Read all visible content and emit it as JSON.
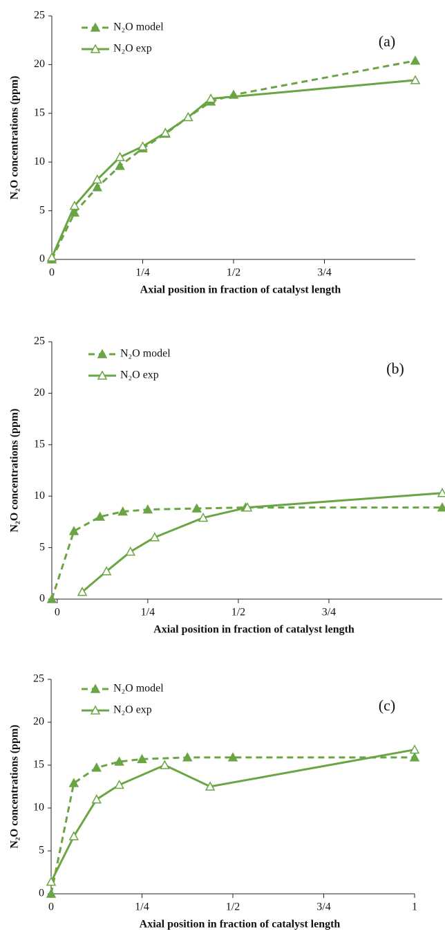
{
  "chart_data": [
    {
      "type": "line",
      "annotation": "(a)",
      "xlabel": "Axial position in fraction of catalyst length",
      "ylabel": "N₂O concentrations (ppm)",
      "xlim": [
        0,
        1
      ],
      "xticks": [
        0,
        {
          "value": 0.25,
          "label": "1/4"
        },
        {
          "value": 0.5,
          "label": "1/2"
        },
        {
          "value": 0.75,
          "label": "3/4"
        }
      ],
      "ylim": [
        0,
        25
      ],
      "yticks": [
        0,
        5,
        10,
        15,
        20,
        25
      ],
      "series": [
        {
          "name": "N₂O model",
          "color": "#6aa544",
          "line_style": "dashed",
          "marker": "filled-triangle",
          "x": [
            0,
            0.0625,
            0.125,
            0.1875,
            0.25,
            0.3125,
            0.375,
            0.4375,
            0.5,
            1
          ],
          "values": [
            0,
            4.8,
            7.4,
            9.6,
            11.4,
            12.9,
            14.6,
            16.2,
            16.9,
            20.4
          ]
        },
        {
          "name": "N₂O exp",
          "color": "#6aa544",
          "line_style": "solid",
          "marker": "open-triangle",
          "x": [
            0,
            0.0625,
            0.125,
            0.1875,
            0.25,
            0.3125,
            0.375,
            0.4375,
            1
          ],
          "values": [
            0.2,
            5.5,
            8.2,
            10.5,
            11.6,
            13.0,
            14.6,
            16.5,
            18.4
          ]
        }
      ]
    },
    {
      "type": "line",
      "annotation": "(b)",
      "xlabel": "Axial position in fraction of catalyst length",
      "ylabel": "N₂O concentrations (ppm)",
      "xlim": [
        -0.015,
        1.063
      ],
      "xticks": [
        0,
        {
          "value": 0.25,
          "label": "1/4"
        },
        {
          "value": 0.5,
          "label": "1/2"
        },
        {
          "value": 0.75,
          "label": "3/4"
        }
      ],
      "ylim": [
        0,
        25
      ],
      "yticks": [
        0,
        5,
        10,
        15,
        20,
        25
      ],
      "series": [
        {
          "name": "N₂O model",
          "color": "#6aa544",
          "line_style": "dashed",
          "marker": "filled-triangle",
          "x": [
            -0.015,
            0.046,
            0.118,
            0.181,
            0.25,
            0.385,
            0.52,
            1.063
          ],
          "values": [
            0,
            6.6,
            8.0,
            8.5,
            8.7,
            8.8,
            8.9,
            8.9
          ]
        },
        {
          "name": "N₂O exp",
          "color": "#6aa544",
          "line_style": "solid",
          "marker": "open-triangle",
          "x": [
            0.069,
            0.136,
            0.202,
            0.269,
            0.403,
            0.525,
            1.063
          ],
          "values": [
            0.7,
            2.7,
            4.6,
            6.0,
            7.9,
            8.9,
            10.3
          ]
        }
      ]
    },
    {
      "type": "line",
      "annotation": "(c)",
      "xlabel": "Axial position in fraction of catalyst length",
      "ylabel": "N₂O concentrations (ppm)",
      "xlim": [
        0,
        1
      ],
      "xticks": [
        0,
        {
          "value": 0.25,
          "label": "1/4"
        },
        {
          "value": 0.5,
          "label": "1/2"
        },
        {
          "value": 0.75,
          "label": "3/4"
        },
        1
      ],
      "ylim": [
        0,
        25
      ],
      "yticks": [
        0,
        5,
        10,
        15,
        20,
        25
      ],
      "series": [
        {
          "name": "N₂O model",
          "color": "#6aa544",
          "line_style": "dashed",
          "marker": "filled-triangle",
          "x": [
            0,
            0.0625,
            0.125,
            0.1875,
            0.25,
            0.375,
            0.5,
            1
          ],
          "values": [
            0,
            12.9,
            14.7,
            15.4,
            15.7,
            15.9,
            15.9,
            15.9
          ]
        },
        {
          "name": "N₂O exp",
          "color": "#6aa544",
          "line_style": "solid",
          "marker": "open-triangle",
          "x": [
            0,
            0.0625,
            0.125,
            0.1875,
            0.3125,
            0.4375,
            1
          ],
          "values": [
            1.4,
            6.7,
            11.0,
            12.7,
            15.0,
            12.5,
            16.8
          ]
        }
      ]
    }
  ]
}
